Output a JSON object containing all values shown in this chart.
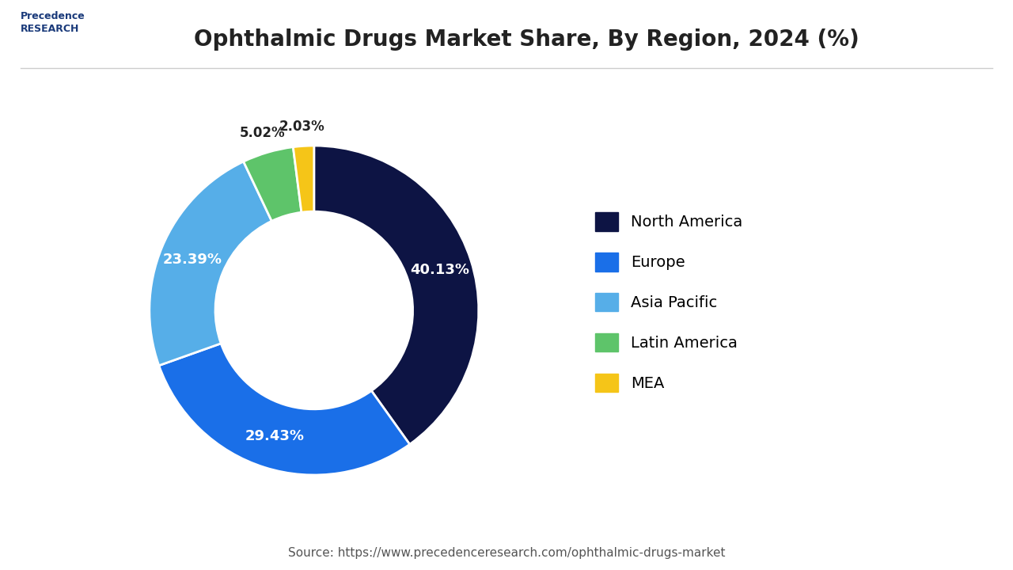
{
  "title": "Ophthalmic Drugs Market Share, By Region, 2024 (%)",
  "title_fontsize": 20,
  "slices": [
    {
      "label": "North America",
      "value": 40.13,
      "color": "#0d1444"
    },
    {
      "label": "Europe",
      "value": 29.43,
      "color": "#1a6fe8"
    },
    {
      "label": "Asia Pacific",
      "value": 23.39,
      "color": "#56aee8"
    },
    {
      "label": "Latin America",
      "value": 5.02,
      "color": "#5ec46a"
    },
    {
      "label": "MEA",
      "value": 2.03,
      "color": "#f5c518"
    }
  ],
  "pct_labels": [
    "40.13%",
    "29.43%",
    "23.39%",
    "5.02%",
    "2.03%"
  ],
  "inside_label": [
    true,
    true,
    true,
    false,
    false
  ],
  "wedge_edge_color": "white",
  "wedge_edge_width": 2,
  "donut_hole": 0.6,
  "background_color": "#ffffff",
  "source_text": "Source: https://www.precedenceresearch.com/ophthalmic-drugs-market",
  "source_fontsize": 11,
  "legend_fontsize": 14,
  "label_fontsize": 13,
  "label_color_inside": "#ffffff",
  "label_color_outside": "#222222"
}
